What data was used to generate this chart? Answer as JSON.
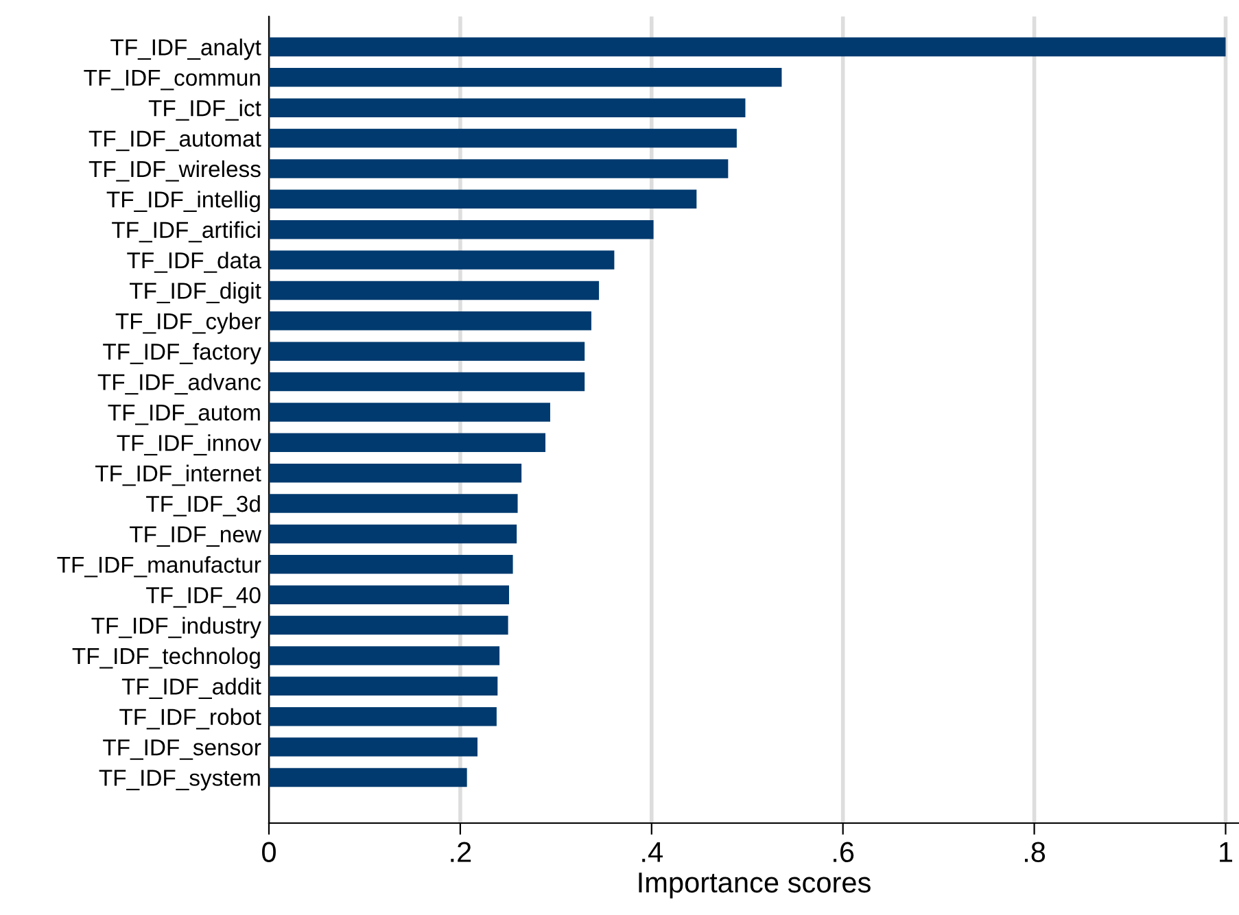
{
  "chart_data": {
    "type": "bar",
    "orientation": "horizontal",
    "xlabel": "Importance scores",
    "categories": [
      "TF_IDF_analyt",
      "TF_IDF_commun",
      "TF_IDF_ict",
      "TF_IDF_automat",
      "TF_IDF_wireless",
      "TF_IDF_intellig",
      "TF_IDF_artifici",
      "TF_IDF_data",
      "TF_IDF_digit",
      "TF_IDF_cyber",
      "TF_IDF_factory",
      "TF_IDF_advanc",
      "TF_IDF_autom",
      "TF_IDF_innov",
      "TF_IDF_internet",
      "TF_IDF_3d",
      "TF_IDF_new",
      "TF_IDF_manufactur",
      "TF_IDF_40",
      "TF_IDF_industry",
      "TF_IDF_technolog",
      "TF_IDF_addit",
      "TF_IDF_robot",
      "TF_IDF_sensor",
      "TF_IDF_system"
    ],
    "values": [
      1,
      0.536,
      0.498,
      0.489,
      0.48,
      0.447,
      0.402,
      0.361,
      0.345,
      0.337,
      0.33,
      0.33,
      0.294,
      0.289,
      0.264,
      0.26,
      0.259,
      0.255,
      0.251,
      0.25,
      0.241,
      0.239,
      0.238,
      0.218,
      0.207
    ],
    "color": "#003a6f",
    "xlim": [
      0,
      1.014
    ],
    "xticks": [
      0,
      {
        "value": 0.2,
        "label": ".2"
      },
      {
        "value": 0.4,
        "label": ".4"
      },
      {
        "value": 0.6,
        "label": ".6"
      },
      {
        "value": 0.8,
        "label": ".8"
      },
      1
    ],
    "grid": "x"
  }
}
